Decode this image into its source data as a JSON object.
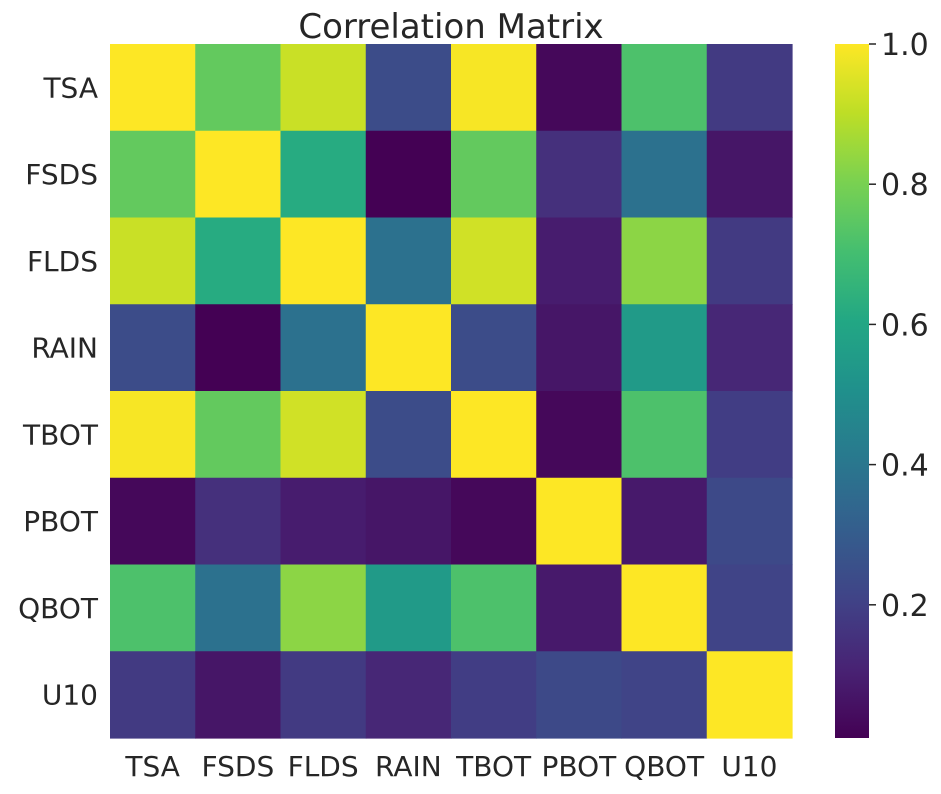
{
  "chart_data": {
    "type": "heatmap",
    "title": "Correlation Matrix",
    "xlabel": "",
    "ylabel": "",
    "x_labels": [
      "TSA",
      "FSDS",
      "FLDS",
      "RAIN",
      "TBOT",
      "PBOT",
      "QBOT",
      "U10"
    ],
    "y_labels": [
      "TSA",
      "FSDS",
      "FLDS",
      "RAIN",
      "TBOT",
      "PBOT",
      "QBOT",
      "U10"
    ],
    "values": [
      [
        1.0,
        0.76,
        0.92,
        0.24,
        0.99,
        0.03,
        0.72,
        0.18
      ],
      [
        0.76,
        1.0,
        0.62,
        0.01,
        0.76,
        0.15,
        0.38,
        0.07
      ],
      [
        0.92,
        0.62,
        1.0,
        0.38,
        0.93,
        0.09,
        0.83,
        0.18
      ],
      [
        0.24,
        0.01,
        0.38,
        1.0,
        0.24,
        0.07,
        0.55,
        0.12
      ],
      [
        0.99,
        0.76,
        0.93,
        0.24,
        1.0,
        0.03,
        0.72,
        0.19
      ],
      [
        0.03,
        0.15,
        0.09,
        0.07,
        0.03,
        1.0,
        0.08,
        0.23
      ],
      [
        0.72,
        0.38,
        0.83,
        0.55,
        0.72,
        0.08,
        1.0,
        0.21
      ],
      [
        0.18,
        0.07,
        0.18,
        0.12,
        0.19,
        0.23,
        0.21,
        1.0
      ]
    ],
    "colormap": "viridis",
    "color_range": [
      0.01,
      1.0
    ],
    "colorbar_ticks": [
      0.2,
      0.4,
      0.6,
      0.8,
      1.0
    ],
    "colorbar_tick_labels": [
      "0.2",
      "0.4",
      "0.6",
      "0.8",
      "1.0"
    ],
    "grid": false,
    "legend": "colorbar-right"
  }
}
